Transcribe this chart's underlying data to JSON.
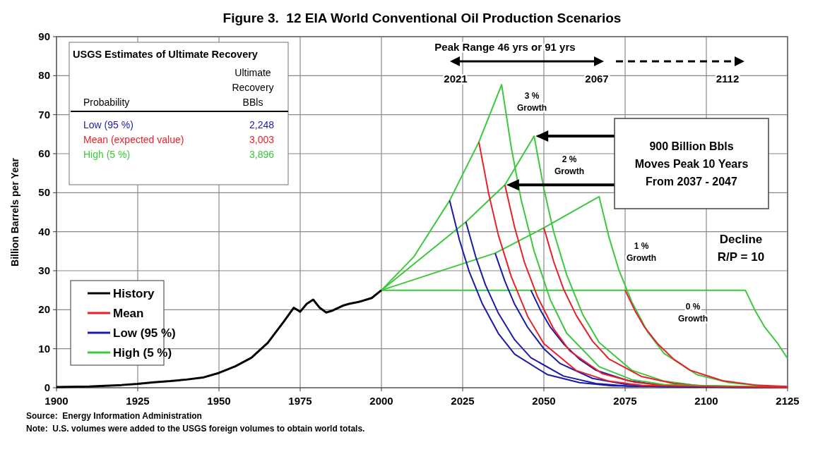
{
  "chart_data": {
    "type": "line",
    "title": "Figure 3.  12 EIA World Conventional Oil Production Scenarios",
    "ylabel": "Billion Barrels per Year",
    "xlim": [
      1900,
      2125
    ],
    "xticks": [
      1900,
      1925,
      1950,
      1975,
      2000,
      2025,
      2050,
      2075,
      2100,
      2125
    ],
    "ylim": [
      0,
      90
    ],
    "yticks": [
      0,
      10,
      20,
      30,
      40,
      50,
      60,
      70,
      80,
      90
    ],
    "grid": true,
    "legend": "bottom left",
    "series": [
      {
        "name": "History",
        "color": "#000000",
        "x": [
          1900,
          1910,
          1920,
          1925,
          1930,
          1935,
          1940,
          1945,
          1950,
          1955,
          1960,
          1965,
          1970,
          1973,
          1975,
          1977,
          1979,
          1981,
          1983,
          1985,
          1988,
          1990,
          1993,
          1997,
          2000
        ],
        "values": [
          0.2,
          0.3,
          0.7,
          1,
          1.4,
          1.7,
          2.1,
          2.6,
          3.8,
          5.5,
          7.7,
          11.5,
          17,
          20.5,
          19.5,
          21.5,
          22.6,
          20.5,
          19.3,
          19.8,
          21,
          21.5,
          22,
          23,
          25
        ]
      },
      {
        "name": "Mean",
        "color": "#e8202a",
        "x": [
          2030,
          2033,
          2036,
          2040,
          2045,
          2050,
          2060,
          2070,
          2080,
          2125
        ],
        "values": [
          63,
          49.8,
          39.1,
          28.4,
          18.3,
          11.3,
          4.4,
          1.7,
          0.6,
          0
        ]
      },
      {
        "name": "Low (95 %)",
        "color": "#1a1aa8",
        "x": [
          2021,
          2024,
          2027,
          2031,
          2036,
          2041,
          2051,
          2061,
          2071,
          2125
        ],
        "values": [
          48,
          37.9,
          29.8,
          21.6,
          13.9,
          8.6,
          3.4,
          1.3,
          0.5,
          0
        ]
      },
      {
        "name": "High (5 %)",
        "color": "#3cc83c",
        "x": [
          2000,
          2010,
          2021,
          2030,
          2037,
          2040,
          2043,
          2047,
          2052,
          2057,
          2067,
          2077,
          2087,
          2125
        ],
        "values": [
          25,
          33.6,
          48,
          63,
          77.7,
          61.4,
          48.2,
          35,
          22.5,
          14,
          5.4,
          2.1,
          0.8,
          0
        ]
      },
      {
        "color": "#e8202a",
        "x": [
          2038,
          2041,
          2044,
          2048,
          2053,
          2058,
          2068,
          2078,
          2088,
          2125
        ],
        "values": [
          52,
          41.1,
          32.2,
          23.4,
          15.1,
          9.4,
          3.6,
          1.4,
          0.5,
          0
        ]
      },
      {
        "color": "#e8202a",
        "x": [
          2050,
          2053,
          2056,
          2060,
          2065,
          2070,
          2080,
          2090,
          2100,
          2125
        ],
        "values": [
          41,
          32.4,
          25.4,
          18.5,
          11.9,
          7.4,
          2.9,
          1.1,
          0.4,
          0.1
        ]
      },
      {
        "color": "#e8202a",
        "x": [
          2075,
          2078,
          2081,
          2085,
          2090,
          2095,
          2105,
          2115,
          2125
        ],
        "values": [
          25,
          19.8,
          15.5,
          11.3,
          7.3,
          4.5,
          1.8,
          0.7,
          0.3
        ]
      },
      {
        "color": "#1a1aa8",
        "x": [
          2026,
          2029,
          2032,
          2036,
          2041,
          2046,
          2056,
          2066,
          2076,
          2125
        ],
        "values": [
          42.5,
          33.6,
          26.4,
          19.1,
          12.3,
          7.7,
          3,
          1.1,
          0.4,
          0
        ]
      },
      {
        "color": "#1a1aa8",
        "x": [
          2035,
          2038,
          2041,
          2045,
          2050,
          2055,
          2065,
          2075,
          2085,
          2125
        ],
        "values": [
          34.5,
          27.3,
          21.4,
          15.5,
          10,
          6.2,
          2.4,
          0.9,
          0.3,
          0
        ]
      },
      {
        "color": "#1a1aa8",
        "x": [
          2046,
          2049,
          2052,
          2056,
          2061,
          2066,
          2076,
          2086,
          2096,
          2125
        ],
        "values": [
          25,
          19.8,
          15.5,
          11.3,
          7.3,
          4.5,
          1.8,
          0.7,
          0.3,
          0
        ]
      },
      {
        "color": "#3cc83c",
        "x": [
          2000,
          2026,
          2038,
          2047,
          2050,
          2053,
          2057,
          2062,
          2067,
          2077,
          2087,
          2097,
          2125
        ],
        "values": [
          25,
          42.5,
          52,
          64.5,
          51,
          40,
          29,
          18.7,
          11.6,
          4.5,
          1.7,
          0.6,
          0.1
        ]
      },
      {
        "color": "#3cc83c",
        "x": [
          2000,
          2035,
          2050,
          2067,
          2070,
          2073,
          2077,
          2082,
          2087,
          2097,
          2107,
          2117,
          2125
        ],
        "values": [
          25,
          34.5,
          41,
          49,
          38.7,
          30.4,
          22.1,
          14.2,
          8.8,
          3.4,
          1.3,
          0.5,
          0.2
        ]
      },
      {
        "color": "#3cc83c",
        "x": [
          2000,
          2112,
          2115,
          2118,
          2122,
          2125
        ],
        "values": [
          25,
          25,
          19.8,
          15.5,
          11.3,
          7.5
        ]
      }
    ],
    "annotations": [
      "Source:  Energy Information Administration",
      "Note:  U.S. volumes were added to the USGS foreign volumes to obtain world totals.",
      "USGS Estimates of Ultimate Recovery",
      "Probability",
      "Ultimate\nRecovery\nBBls",
      "Low (95 %)",
      "2,248",
      "Mean (expected value)",
      "3,003",
      "High (5 %)",
      "3,896",
      "Peak Range 46 yrs or 91 yrs",
      "2021",
      "2067",
      "2112",
      "3 %\nGrowth",
      "2 %\nGrowth",
      "1 %\nGrowth",
      "0 %\nGrowth",
      "900 Billion Bbls\nMoves Peak 10 Years\nFrom 2037 - 2047",
      "Decline\nR/P = 10"
    ]
  }
}
